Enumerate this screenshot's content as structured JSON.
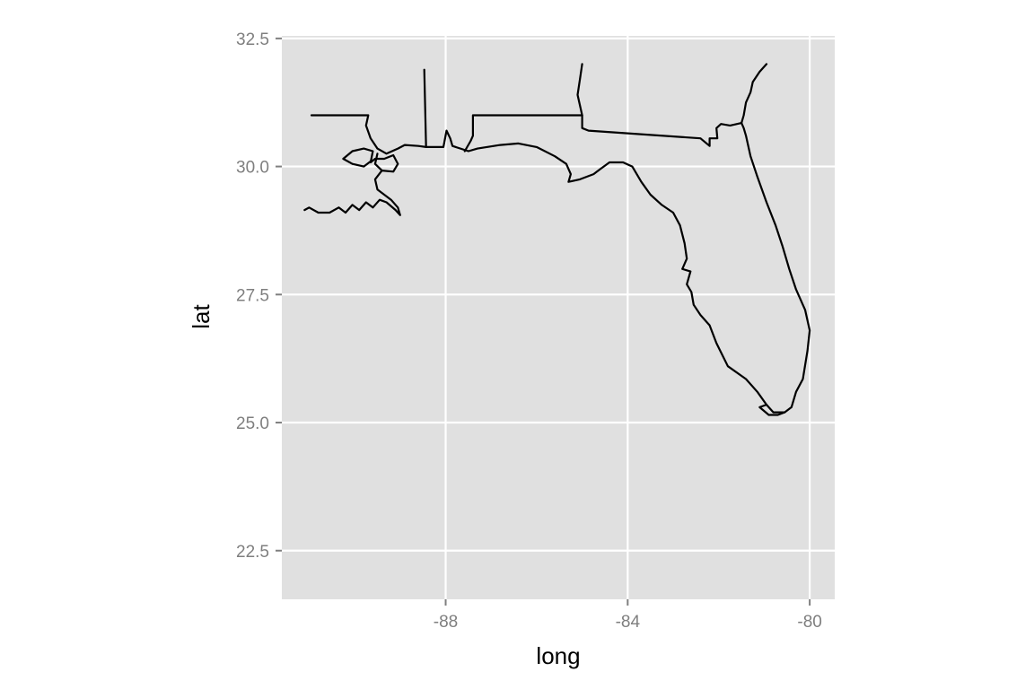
{
  "chart_data": {
    "type": "map",
    "xlabel": "long",
    "ylabel": "lat",
    "xlim": [
      -91.6,
      -79.45
    ],
    "ylim": [
      21.55,
      32.55
    ],
    "x_ticks": [
      -88,
      -84,
      -80
    ],
    "y_ticks": [
      22.5,
      25.0,
      27.5,
      30.0,
      32.5
    ],
    "x_tick_labels": [
      "-88",
      "-84",
      "-80"
    ],
    "y_tick_labels": [
      "22.5",
      "25.0",
      "27.5",
      "30.0",
      "32.5"
    ],
    "grid": true,
    "colors": {
      "panel_background": "#e0e0e0",
      "grid": "#ffffff",
      "outline": "#000000",
      "tick_text": "#7f7f7f"
    },
    "series": [
      {
        "points": [
          [
            -88.47,
            31.89
          ],
          [
            -88.43,
            30.38
          ],
          [
            -88.2,
            30.38
          ],
          [
            -88.05,
            30.38
          ],
          [
            -87.98,
            30.7
          ],
          [
            -87.9,
            30.55
          ],
          [
            -87.85,
            30.4
          ],
          [
            -87.5,
            30.3
          ],
          [
            -87.3,
            30.35
          ],
          [
            -86.8,
            30.42
          ],
          [
            -86.4,
            30.45
          ],
          [
            -86.0,
            30.38
          ],
          [
            -85.6,
            30.2
          ],
          [
            -85.35,
            30.05
          ],
          [
            -85.25,
            29.85
          ],
          [
            -85.3,
            29.7
          ],
          [
            -85.05,
            29.75
          ],
          [
            -84.75,
            29.85
          ],
          [
            -84.6,
            29.95
          ],
          [
            -84.4,
            30.08
          ],
          [
            -84.1,
            30.08
          ],
          [
            -83.9,
            30.0
          ],
          [
            -83.7,
            29.7
          ],
          [
            -83.5,
            29.45
          ],
          [
            -83.25,
            29.25
          ],
          [
            -83.0,
            29.1
          ],
          [
            -82.85,
            28.85
          ],
          [
            -82.75,
            28.5
          ],
          [
            -82.7,
            28.2
          ],
          [
            -82.8,
            28.0
          ],
          [
            -82.62,
            27.95
          ],
          [
            -82.7,
            27.7
          ],
          [
            -82.6,
            27.55
          ],
          [
            -82.55,
            27.3
          ],
          [
            -82.4,
            27.1
          ],
          [
            -82.2,
            26.9
          ],
          [
            -82.05,
            26.55
          ],
          [
            -81.8,
            26.1
          ],
          [
            -81.4,
            25.85
          ],
          [
            -81.15,
            25.6
          ],
          [
            -80.95,
            25.35
          ],
          [
            -80.8,
            25.2
          ],
          [
            -80.55,
            25.2
          ],
          [
            -80.4,
            25.3
          ],
          [
            -80.3,
            25.6
          ],
          [
            -80.15,
            25.85
          ],
          [
            -80.05,
            26.4
          ],
          [
            -80.0,
            26.8
          ],
          [
            -80.1,
            27.2
          ],
          [
            -80.3,
            27.6
          ],
          [
            -80.45,
            28.0
          ],
          [
            -80.6,
            28.45
          ],
          [
            -80.75,
            28.85
          ],
          [
            -80.95,
            29.3
          ],
          [
            -81.15,
            29.8
          ],
          [
            -81.3,
            30.2
          ],
          [
            -81.4,
            30.6
          ],
          [
            -81.45,
            30.75
          ],
          [
            -81.5,
            30.85
          ],
          [
            -81.75,
            30.8
          ],
          [
            -81.95,
            30.83
          ],
          [
            -82.05,
            30.75
          ],
          [
            -82.03,
            30.55
          ],
          [
            -82.2,
            30.55
          ],
          [
            -82.2,
            30.4
          ],
          [
            -82.4,
            30.55
          ],
          [
            -84.86,
            30.7
          ],
          [
            -85.0,
            30.75
          ],
          [
            -85.0,
            31.0
          ],
          [
            -85.1,
            31.4
          ],
          [
            -85.05,
            31.7
          ],
          [
            -85.0,
            32.0
          ]
        ]
      },
      {
        "points": [
          [
            -90.95,
            31.0
          ],
          [
            -89.7,
            31.0
          ],
          [
            -89.75,
            30.8
          ],
          [
            -89.65,
            30.55
          ],
          [
            -89.5,
            30.35
          ],
          [
            -89.3,
            30.25
          ],
          [
            -89.05,
            30.35
          ],
          [
            -88.9,
            30.42
          ],
          [
            -88.6,
            30.4
          ],
          [
            -88.43,
            30.38
          ]
        ]
      },
      {
        "points": [
          [
            -87.58,
            30.3
          ],
          [
            -87.45,
            30.5
          ],
          [
            -87.4,
            30.6
          ],
          [
            -87.4,
            31.0
          ],
          [
            -85.0,
            31.0
          ]
        ]
      },
      {
        "points": [
          [
            -89.5,
            30.25
          ],
          [
            -89.55,
            30.05
          ],
          [
            -89.4,
            29.92
          ],
          [
            -89.15,
            29.9
          ],
          [
            -89.05,
            30.05
          ],
          [
            -89.15,
            30.22
          ],
          [
            -89.35,
            30.15
          ],
          [
            -89.55,
            30.15
          ],
          [
            -89.65,
            30.08
          ],
          [
            -89.6,
            30.3
          ],
          [
            -89.8,
            30.35
          ],
          [
            -90.05,
            30.3
          ],
          [
            -90.25,
            30.15
          ],
          [
            -90.05,
            30.05
          ],
          [
            -89.8,
            30.0
          ],
          [
            -89.65,
            30.1
          ]
        ]
      },
      {
        "points": [
          [
            -89.4,
            29.92
          ],
          [
            -89.55,
            29.75
          ],
          [
            -89.5,
            29.55
          ],
          [
            -89.35,
            29.45
          ],
          [
            -89.2,
            29.35
          ],
          [
            -89.05,
            29.2
          ],
          [
            -89.0,
            29.05
          ],
          [
            -89.1,
            29.15
          ],
          [
            -89.3,
            29.3
          ],
          [
            -89.45,
            29.35
          ],
          [
            -89.6,
            29.2
          ],
          [
            -89.75,
            29.3
          ],
          [
            -89.9,
            29.15
          ],
          [
            -90.05,
            29.25
          ],
          [
            -90.2,
            29.1
          ],
          [
            -90.35,
            29.2
          ],
          [
            -90.55,
            29.1
          ],
          [
            -90.8,
            29.1
          ],
          [
            -91.0,
            29.2
          ],
          [
            -91.1,
            29.15
          ]
        ]
      },
      {
        "points": [
          [
            -80.95,
            25.35
          ],
          [
            -81.1,
            25.3
          ],
          [
            -80.9,
            25.15
          ],
          [
            -80.7,
            25.15
          ],
          [
            -80.55,
            25.2
          ]
        ]
      },
      {
        "points": [
          [
            -81.5,
            30.85
          ],
          [
            -81.45,
            31.0
          ],
          [
            -81.4,
            31.25
          ],
          [
            -81.3,
            31.45
          ],
          [
            -81.25,
            31.65
          ],
          [
            -81.1,
            31.85
          ],
          [
            -80.95,
            32.0
          ]
        ]
      }
    ]
  }
}
